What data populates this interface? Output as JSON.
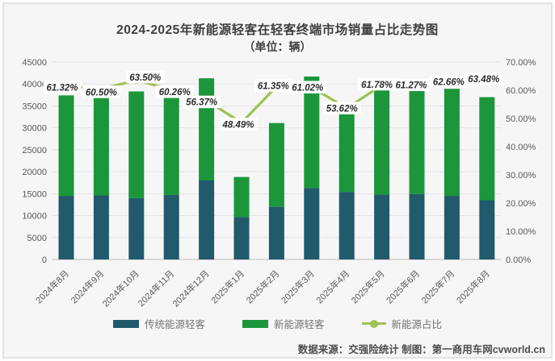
{
  "title": "2024-2025年新能源轻客在轻客终端市场销量占比走势图",
  "subtitle": "（单位：辆）",
  "source_note": "数据来源：交强险统计 制图：第一商用车网cvworld.cn",
  "colors": {
    "traditional": "#205a6b",
    "new_energy": "#1b963b",
    "share_line": "#9dc153",
    "background": "#f6f6f7",
    "grid": "#e3e3e5",
    "axis_line": "#c6c6c6",
    "axis_text": "#595959",
    "data_label_text": "#2b2b2b",
    "data_label_bg": "#ffffff"
  },
  "legend": [
    {
      "label": "传统能源轻客",
      "type": "bar",
      "color_key": "traditional"
    },
    {
      "label": "新能源轻客",
      "type": "bar",
      "color_key": "new_energy"
    },
    {
      "label": "新能源占比",
      "type": "line",
      "color_key": "share_line"
    }
  ],
  "chart_data": {
    "type": "stacked-bar+line",
    "title": "2024-2025年新能源轻客在轻客终端市场销量占比走势图",
    "subtitle": "（单位：辆）",
    "grid": true,
    "legend_position": "bottom",
    "categories": [
      "2024年8月",
      "2024年9月",
      "2024年10月",
      "2024年11月",
      "2024年12月",
      "2025年1月",
      "2025年2月",
      "2025年3月",
      "2025年4月",
      "2025年5月",
      "2025年6月",
      "2025年7月",
      "2025年8月"
    ],
    "series": [
      {
        "name": "传统能源轻客",
        "type": "bar",
        "stack": true,
        "axis": "left",
        "values": [
          14500,
          14600,
          14000,
          14700,
          18000,
          9700,
          12000,
          16300,
          15400,
          14800,
          14900,
          14500,
          13500
        ]
      },
      {
        "name": "新能源轻客",
        "type": "bar",
        "stack": true,
        "axis": "left",
        "values": [
          22900,
          22400,
          24300,
          22200,
          23300,
          9100,
          19100,
          25400,
          17700,
          23800,
          23600,
          24400,
          23500
        ]
      },
      {
        "name": "新能源占比",
        "type": "line",
        "axis": "right",
        "unit": "%",
        "values": [
          61.32,
          60.5,
          63.5,
          60.26,
          56.37,
          48.49,
          61.35,
          61.02,
          53.62,
          61.78,
          61.27,
          62.66,
          63.48
        ],
        "point_labels": [
          "61.32%",
          "60.50%",
          "63.50%",
          "60.26%",
          "56.37%",
          "48.49%",
          "61.35%",
          "61.02%",
          "53.62%",
          "61.78%",
          "61.27%",
          "62.66%",
          "63.48%"
        ]
      }
    ],
    "left_axis": {
      "min": 0,
      "max": 45000,
      "step": 5000,
      "tick_labels": [
        "0",
        "5000",
        "10000",
        "15000",
        "20000",
        "25000",
        "30000",
        "35000",
        "40000",
        "45000"
      ]
    },
    "right_axis": {
      "min": 0,
      "max": 70,
      "step": 10,
      "tick_labels": [
        "0.00%",
        "10.00%",
        "20.00%",
        "30.00%",
        "40.00%",
        "50.00%",
        "60.00%",
        "70.00%"
      ]
    }
  }
}
